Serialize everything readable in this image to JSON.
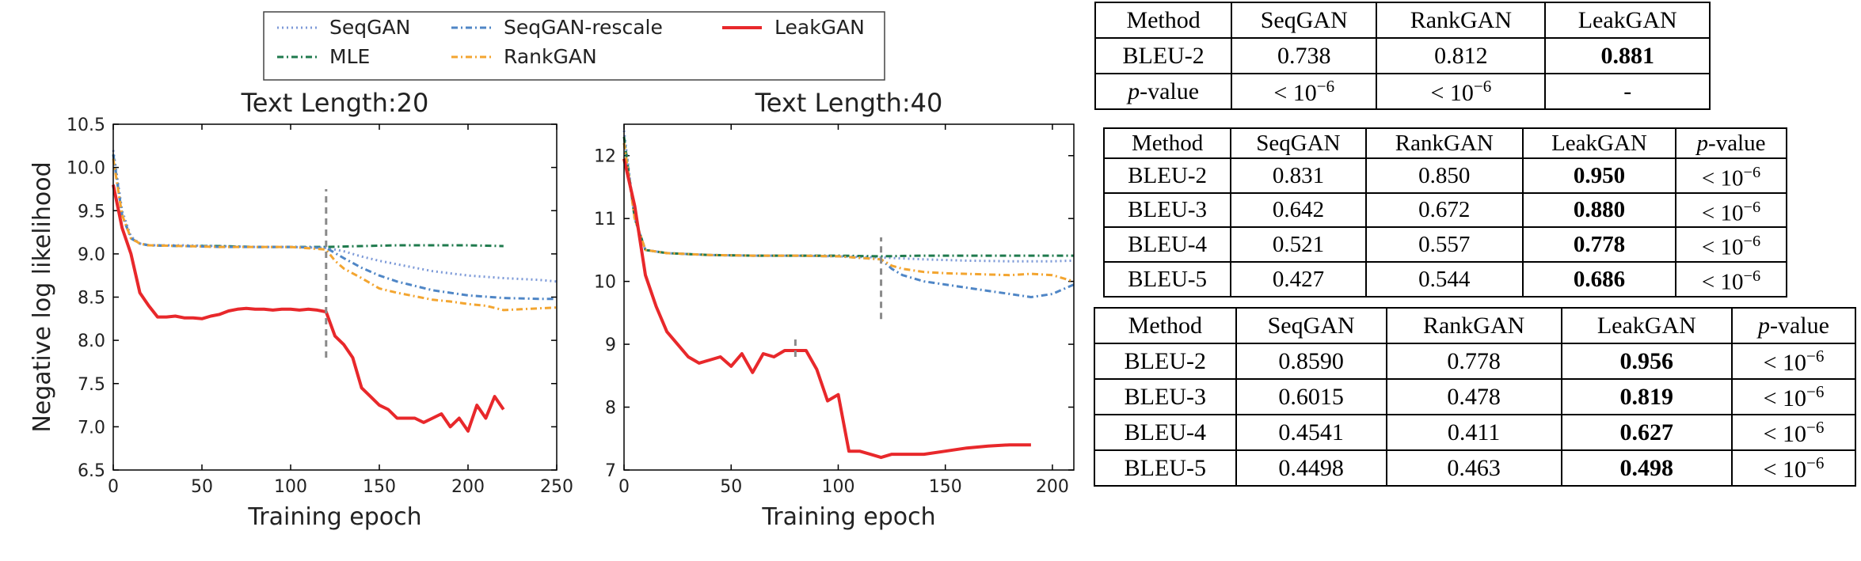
{
  "chart_data": [
    {
      "type": "line",
      "title": "Text Length:20",
      "xlabel": "Training epoch",
      "ylabel": "Negative log likelihood",
      "xlim": [
        0,
        250
      ],
      "ylim": [
        6.5,
        10.5
      ],
      "xticks": [
        "0",
        "50",
        "100",
        "150",
        "200",
        "250"
      ],
      "yticks": [
        "6.5",
        "7.0",
        "7.5",
        "8.0",
        "8.5",
        "9.0",
        "9.5",
        "10.0",
        "10.5"
      ],
      "vlines": [
        {
          "x": 120,
          "y": [
            7.8,
            9.75
          ]
        }
      ],
      "series": [
        {
          "name": "SeqGAN",
          "x": [
            0,
            5,
            10,
            15,
            20,
            40,
            60,
            80,
            100,
            120,
            130,
            140,
            150,
            160,
            170,
            180,
            200,
            220,
            240,
            250
          ],
          "y": [
            10.2,
            9.5,
            9.2,
            9.12,
            9.1,
            9.1,
            9.09,
            9.08,
            9.08,
            9.07,
            9.03,
            8.97,
            8.92,
            8.88,
            8.84,
            8.8,
            8.75,
            8.72,
            8.7,
            8.68
          ]
        },
        {
          "name": "MLE",
          "x": [
            0,
            5,
            10,
            15,
            20,
            40,
            60,
            80,
            100,
            120,
            140,
            160,
            180,
            200,
            220
          ],
          "y": [
            10.15,
            9.45,
            9.18,
            9.12,
            9.1,
            9.09,
            9.09,
            9.08,
            9.08,
            9.08,
            9.09,
            9.1,
            9.1,
            9.1,
            9.09
          ]
        },
        {
          "name": "SeqGAN-rescale",
          "x": [
            0,
            5,
            10,
            15,
            20,
            40,
            60,
            80,
            100,
            120,
            130,
            140,
            150,
            160,
            170,
            180,
            200,
            220,
            240,
            250
          ],
          "y": [
            10.15,
            9.45,
            9.18,
            9.12,
            9.1,
            9.09,
            9.08,
            9.08,
            9.08,
            9.07,
            8.95,
            8.84,
            8.75,
            8.68,
            8.63,
            8.58,
            8.52,
            8.49,
            8.48,
            8.48
          ]
        },
        {
          "name": "RankGAN",
          "x": [
            0,
            5,
            10,
            15,
            20,
            40,
            60,
            80,
            100,
            120,
            125,
            130,
            140,
            150,
            160,
            170,
            180,
            190,
            200,
            210,
            220,
            230,
            240,
            250
          ],
          "y": [
            10.1,
            9.45,
            9.18,
            9.12,
            9.1,
            9.09,
            9.08,
            9.08,
            9.08,
            9.05,
            8.92,
            8.83,
            8.72,
            8.6,
            8.55,
            8.51,
            8.47,
            8.45,
            8.42,
            8.4,
            8.35,
            8.36,
            8.37,
            8.38
          ]
        },
        {
          "name": "LeakGAN",
          "x": [
            0,
            5,
            10,
            15,
            20,
            25,
            30,
            35,
            40,
            45,
            50,
            55,
            60,
            65,
            70,
            75,
            80,
            85,
            90,
            95,
            100,
            105,
            110,
            115,
            120,
            125,
            130,
            135,
            140,
            145,
            150,
            155,
            160,
            165,
            170,
            175,
            180,
            185,
            190,
            195,
            200,
            205,
            210,
            215,
            220
          ],
          "y": [
            9.8,
            9.3,
            9.0,
            8.55,
            8.4,
            8.27,
            8.27,
            8.28,
            8.26,
            8.26,
            8.25,
            8.28,
            8.3,
            8.34,
            8.36,
            8.37,
            8.36,
            8.36,
            8.35,
            8.36,
            8.36,
            8.35,
            8.36,
            8.35,
            8.33,
            8.05,
            7.95,
            7.8,
            7.45,
            7.35,
            7.25,
            7.2,
            7.1,
            7.1,
            7.1,
            7.05,
            7.1,
            7.15,
            7.0,
            7.1,
            6.95,
            7.25,
            7.1,
            7.35,
            7.2
          ]
        }
      ]
    },
    {
      "type": "line",
      "title": "Text Length:40",
      "xlabel": "Training epoch",
      "ylabel": "",
      "xlim": [
        0,
        210
      ],
      "ylim": [
        7,
        12.5
      ],
      "xticks": [
        "0",
        "50",
        "100",
        "150",
        "200"
      ],
      "yticks": [
        "7",
        "8",
        "9",
        "10",
        "11",
        "12"
      ],
      "vlines": [
        {
          "x": 80,
          "y": [
            8.8,
            9.1
          ]
        },
        {
          "x": 120,
          "y": [
            9.4,
            10.7
          ]
        }
      ],
      "series": [
        {
          "name": "SeqGAN",
          "x": [
            0,
            5,
            10,
            20,
            40,
            60,
            80,
            100,
            120,
            140,
            160,
            180,
            200,
            210
          ],
          "y": [
            12.4,
            11.0,
            10.5,
            10.45,
            10.42,
            10.41,
            10.41,
            10.4,
            10.38,
            10.35,
            10.33,
            10.32,
            10.32,
            10.33
          ]
        },
        {
          "name": "MLE",
          "x": [
            0,
            5,
            10,
            20,
            40,
            60,
            80,
            100,
            120,
            140,
            160,
            180,
            200,
            210
          ],
          "y": [
            12.3,
            11.0,
            10.5,
            10.45,
            10.42,
            10.41,
            10.41,
            10.41,
            10.4,
            10.41,
            10.41,
            10.41,
            10.41,
            10.41
          ]
        },
        {
          "name": "SeqGAN-rescale",
          "x": [
            0,
            5,
            10,
            20,
            40,
            60,
            80,
            100,
            120,
            125,
            130,
            140,
            150,
            160,
            170,
            180,
            190,
            200,
            210
          ],
          "y": [
            12.2,
            11.0,
            10.5,
            10.45,
            10.42,
            10.41,
            10.41,
            10.4,
            10.35,
            10.2,
            10.1,
            10.0,
            9.95,
            9.9,
            9.85,
            9.8,
            9.75,
            9.8,
            9.95
          ]
        },
        {
          "name": "RankGAN",
          "x": [
            0,
            5,
            10,
            20,
            40,
            60,
            80,
            100,
            120,
            125,
            130,
            140,
            150,
            160,
            170,
            180,
            190,
            200,
            210
          ],
          "y": [
            12.2,
            11.0,
            10.5,
            10.45,
            10.42,
            10.41,
            10.41,
            10.4,
            10.35,
            10.25,
            10.2,
            10.15,
            10.13,
            10.12,
            10.11,
            10.1,
            10.12,
            10.1,
            10.0
          ]
        },
        {
          "name": "LeakGAN",
          "x": [
            0,
            5,
            10,
            15,
            20,
            25,
            30,
            35,
            40,
            45,
            50,
            55,
            60,
            65,
            70,
            75,
            80,
            85,
            90,
            95,
            100,
            105,
            110,
            115,
            120,
            125,
            130,
            140,
            150,
            160,
            170,
            180,
            190
          ],
          "y": [
            11.95,
            11.2,
            10.1,
            9.6,
            9.2,
            9.0,
            8.8,
            8.7,
            8.75,
            8.8,
            8.65,
            8.85,
            8.55,
            8.85,
            8.8,
            8.9,
            8.9,
            8.9,
            8.6,
            8.1,
            8.2,
            7.3,
            7.3,
            7.25,
            7.2,
            7.25,
            7.25,
            7.25,
            7.3,
            7.35,
            7.38,
            7.4,
            7.4
          ]
        }
      ]
    }
  ],
  "legend": [
    {
      "name": "SeqGAN",
      "color": "#7d9ad8",
      "style": "dotted"
    },
    {
      "name": "SeqGAN-rescale",
      "color": "#4f86c6",
      "style": "dashdot"
    },
    {
      "name": "LeakGAN",
      "color": "#e8282b",
      "style": "solid"
    },
    {
      "name": "MLE",
      "color": "#1f7a4d",
      "style": "dashdot"
    },
    {
      "name": "RankGAN",
      "color": "#f3a530",
      "style": "dashdot"
    }
  ],
  "vline_color": "#8a8a8a",
  "tables": [
    {
      "header": [
        "Method",
        "SeqGAN",
        "RankGAN",
        "LeakGAN"
      ],
      "rows": [
        {
          "label": "BLEU-2",
          "cells": [
            "0.738",
            "0.812",
            "0.881"
          ]
        },
        {
          "label": "p-value",
          "cells": [
            "< 10^-6",
            "< 10^-6",
            "-"
          ]
        }
      ]
    },
    {
      "header": [
        "Method",
        "SeqGAN",
        "RankGAN",
        "LeakGAN",
        "p-value"
      ],
      "rows": [
        {
          "label": "BLEU-2",
          "cells": [
            "0.831",
            "0.850",
            "0.950",
            "< 10^-6"
          ]
        },
        {
          "label": "BLEU-3",
          "cells": [
            "0.642",
            "0.672",
            "0.880",
            "< 10^-6"
          ]
        },
        {
          "label": "BLEU-4",
          "cells": [
            "0.521",
            "0.557",
            "0.778",
            "< 10^-6"
          ]
        },
        {
          "label": "BLEU-5",
          "cells": [
            "0.427",
            "0.544",
            "0.686",
            "< 10^-6"
          ]
        }
      ]
    },
    {
      "header": [
        "Method",
        "SeqGAN",
        "RankGAN",
        "LeakGAN",
        "p-value"
      ],
      "rows": [
        {
          "label": "BLEU-2",
          "cells": [
            "0.8590",
            "0.778",
            "0.956",
            "< 10^-6"
          ]
        },
        {
          "label": "BLEU-3",
          "cells": [
            "0.6015",
            "0.478",
            "0.819",
            "< 10^-6"
          ]
        },
        {
          "label": "BLEU-4",
          "cells": [
            "0.4541",
            "0.411",
            "0.627",
            "< 10^-6"
          ]
        },
        {
          "label": "BLEU-5",
          "cells": [
            "0.4498",
            "0.463",
            "0.498",
            "< 10^-6"
          ]
        }
      ]
    }
  ]
}
